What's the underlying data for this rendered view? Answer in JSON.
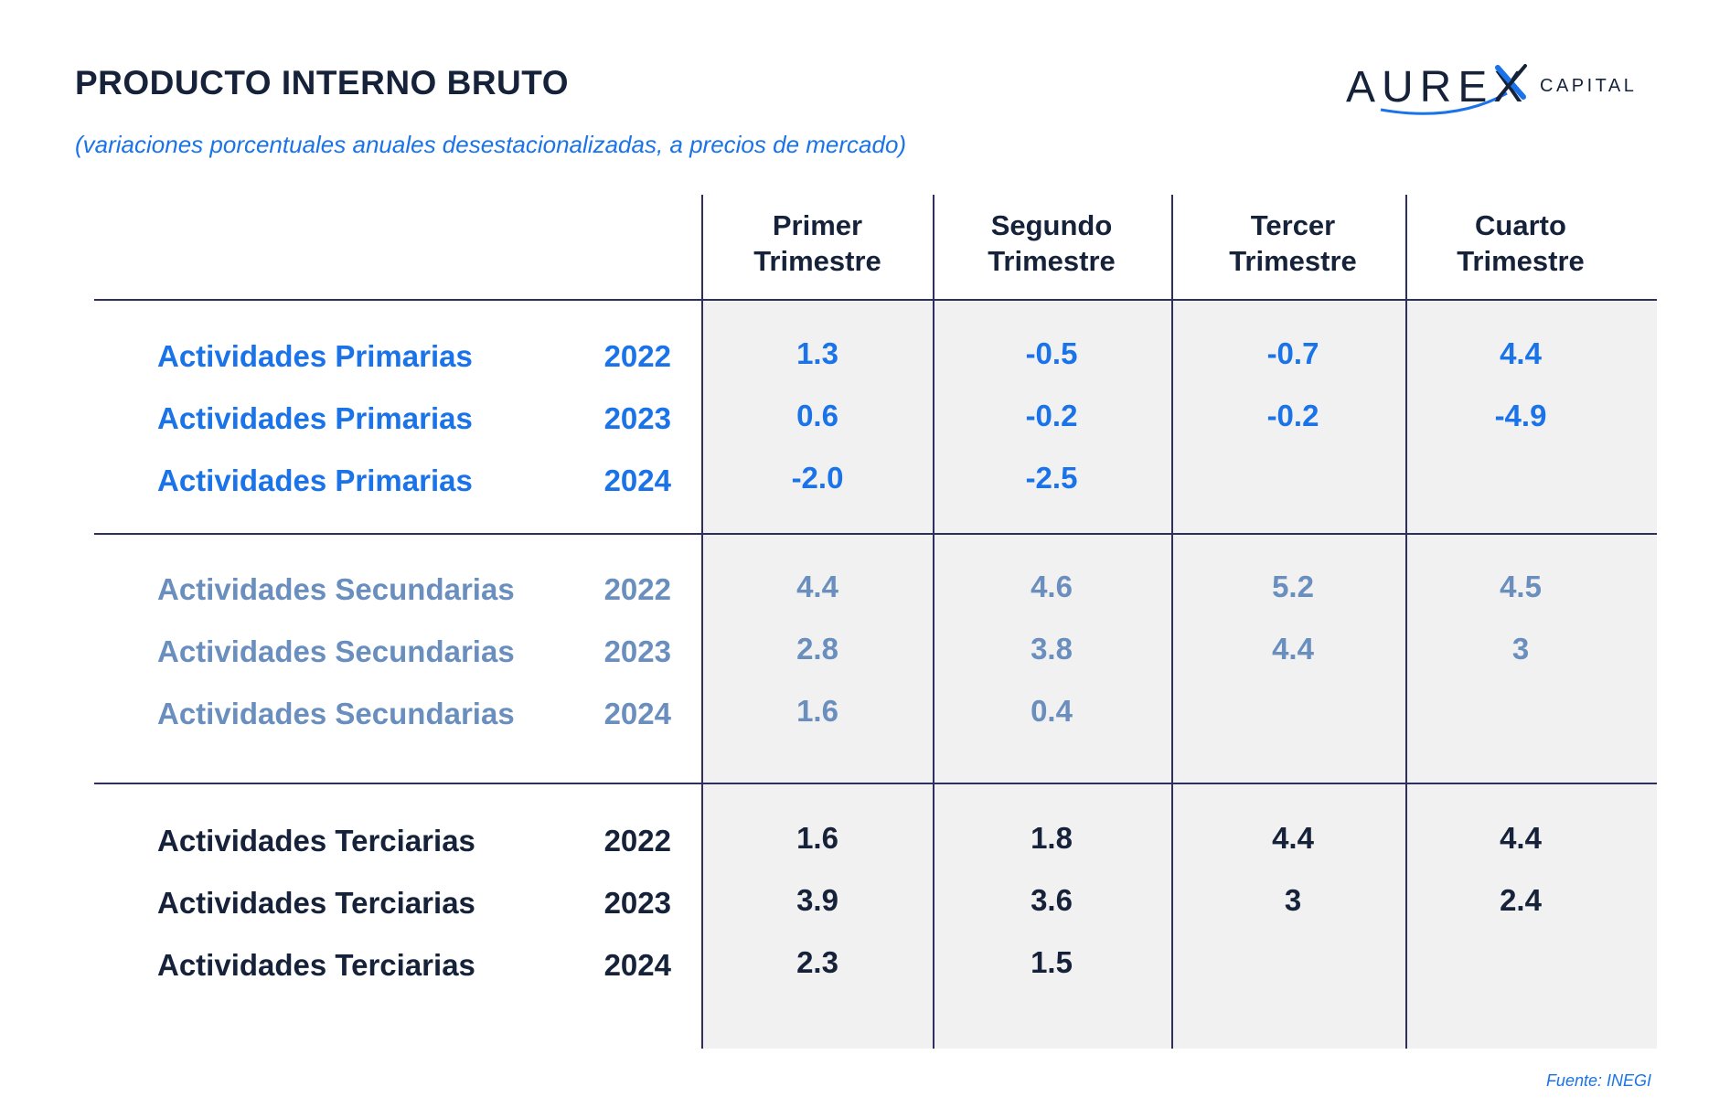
{
  "title": "PRODUCTO INTERNO BRUTO",
  "subtitle": "(variaciones porcentuales anuales desestacionalizadas, a precios de mercado)",
  "logo": {
    "name": "AUREX",
    "tagline": "CAPITAL"
  },
  "colors": {
    "primary": "#1a73e8",
    "secondary": "#6a8fbe",
    "tertiary": "#16223a",
    "grid": "#2e2f5e",
    "shade": "#f1f1f1"
  },
  "columns": [
    {
      "line1": "Primer",
      "line2": "Trimestre"
    },
    {
      "line1": "Segundo",
      "line2": "Trimestre"
    },
    {
      "line1": "Tercer",
      "line2": "Trimestre"
    },
    {
      "line1": "Cuarto",
      "line2": "Trimestre"
    }
  ],
  "groups": [
    {
      "style": "primary",
      "rows": [
        {
          "label": "Actividades Primarias",
          "year": "2022",
          "values": [
            "1.3",
            "-0.5",
            "-0.7",
            "4.4"
          ]
        },
        {
          "label": "Actividades Primarias",
          "year": "2023",
          "values": [
            "0.6",
            "-0.2",
            "-0.2",
            "-4.9"
          ]
        },
        {
          "label": "Actividades Primarias",
          "year": "2024",
          "values": [
            "-2.0",
            "-2.5",
            "",
            ""
          ]
        }
      ]
    },
    {
      "style": "secondary",
      "rows": [
        {
          "label": "Actividades Secundarias",
          "year": "2022",
          "values": [
            "4.4",
            "4.6",
            "5.2",
            "4.5"
          ]
        },
        {
          "label": "Actividades Secundarias",
          "year": "2023",
          "values": [
            "2.8",
            "3.8",
            "4.4",
            "3"
          ]
        },
        {
          "label": "Actividades Secundarias",
          "year": "2024",
          "values": [
            "1.6",
            "0.4",
            "",
            ""
          ]
        }
      ]
    },
    {
      "style": "tertiary",
      "rows": [
        {
          "label": "Actividades Terciarias",
          "year": "2022",
          "values": [
            "1.6",
            "1.8",
            "4.4",
            "4.4"
          ]
        },
        {
          "label": "Actividades Terciarias",
          "year": "2023",
          "values": [
            "3.9",
            "3.6",
            "3",
            "2.4"
          ]
        },
        {
          "label": "Actividades Terciarias",
          "year": "2024",
          "values": [
            "2.3",
            "1.5",
            "",
            ""
          ]
        }
      ]
    }
  ],
  "source": "Fuente: INEGI"
}
